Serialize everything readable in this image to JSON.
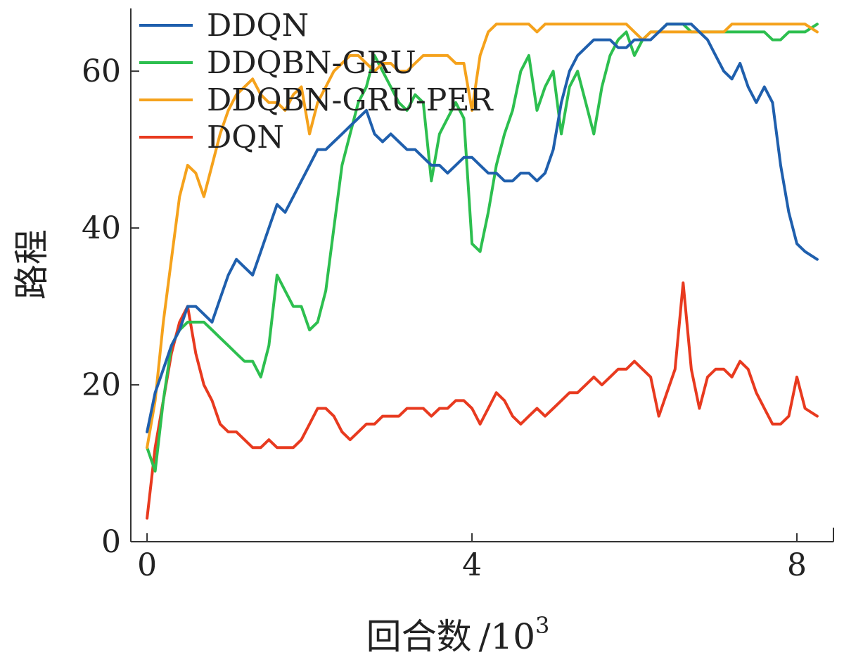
{
  "chart_data": {
    "type": "line",
    "title": "",
    "xlabel": "回合数",
    "xlabel_unit_base": "/10",
    "xlabel_unit_exp": "3",
    "ylabel": "路程",
    "xlim": [
      -0.2,
      8.45
    ],
    "ylim": [
      0,
      68
    ],
    "xticks": [
      0,
      4,
      8
    ],
    "xtick_labels": [
      "0",
      "4",
      "8"
    ],
    "yticks": [
      0,
      20,
      40,
      60
    ],
    "ytick_labels": [
      "0",
      "20",
      "40",
      "60"
    ],
    "legend_position": "top-left",
    "series": [
      {
        "name": "DDQN",
        "color": "#1f5fad",
        "x": [
          0,
          0.1,
          0.2,
          0.3,
          0.4,
          0.5,
          0.6,
          0.7,
          0.8,
          0.9,
          1.0,
          1.1,
          1.2,
          1.3,
          1.4,
          1.5,
          1.6,
          1.7,
          1.8,
          1.9,
          2.0,
          2.1,
          2.2,
          2.3,
          2.4,
          2.5,
          2.6,
          2.7,
          2.8,
          2.9,
          3.0,
          3.1,
          3.2,
          3.3,
          3.4,
          3.5,
          3.6,
          3.7,
          3.8,
          3.9,
          4.0,
          4.1,
          4.2,
          4.3,
          4.4,
          4.5,
          4.6,
          4.7,
          4.8,
          4.9,
          5.0,
          5.1,
          5.2,
          5.3,
          5.4,
          5.5,
          5.6,
          5.7,
          5.8,
          5.9,
          6.0,
          6.1,
          6.2,
          6.3,
          6.4,
          6.5,
          6.6,
          6.7,
          6.8,
          6.9,
          7.0,
          7.1,
          7.2,
          7.3,
          7.4,
          7.5,
          7.6,
          7.7,
          7.8,
          7.9,
          8.0,
          8.1,
          8.25
        ],
        "y": [
          14,
          19,
          22,
          25,
          27,
          30,
          30,
          29,
          28,
          31,
          34,
          36,
          35,
          34,
          37,
          40,
          43,
          42,
          44,
          46,
          48,
          50,
          50,
          51,
          52,
          53,
          54,
          55,
          52,
          51,
          52,
          51,
          50,
          50,
          49,
          48,
          48,
          47,
          48,
          49,
          49,
          48,
          47,
          47,
          46,
          46,
          47,
          47,
          46,
          47,
          50,
          56,
          60,
          62,
          63,
          64,
          64,
          64,
          63,
          63,
          64,
          64,
          64,
          65,
          66,
          66,
          66,
          66,
          65,
          64,
          62,
          60,
          59,
          61,
          58,
          56,
          58,
          56,
          48,
          42,
          38,
          37,
          36
        ]
      },
      {
        "name": "DDQBN-GRU",
        "color": "#2dbf4f",
        "x": [
          0,
          0.1,
          0.2,
          0.3,
          0.4,
          0.5,
          0.6,
          0.7,
          0.8,
          0.9,
          1.0,
          1.1,
          1.2,
          1.3,
          1.4,
          1.5,
          1.6,
          1.7,
          1.8,
          1.9,
          2.0,
          2.1,
          2.2,
          2.3,
          2.4,
          2.5,
          2.6,
          2.7,
          2.8,
          2.9,
          3.0,
          3.1,
          3.2,
          3.3,
          3.4,
          3.5,
          3.6,
          3.7,
          3.8,
          3.9,
          4.0,
          4.1,
          4.2,
          4.3,
          4.4,
          4.5,
          4.6,
          4.7,
          4.8,
          4.9,
          5.0,
          5.1,
          5.2,
          5.3,
          5.4,
          5.5,
          5.6,
          5.7,
          5.8,
          5.9,
          6.0,
          6.1,
          6.2,
          6.3,
          6.4,
          6.5,
          6.6,
          6.7,
          6.8,
          6.9,
          7.0,
          7.1,
          7.2,
          7.3,
          7.4,
          7.5,
          7.6,
          7.7,
          7.8,
          7.9,
          8.0,
          8.1,
          8.25
        ],
        "y": [
          12,
          9,
          18,
          25,
          27,
          28,
          28,
          28,
          27,
          26,
          25,
          24,
          23,
          23,
          21,
          25,
          34,
          32,
          30,
          30,
          27,
          28,
          32,
          40,
          48,
          52,
          56,
          58,
          62,
          60,
          58,
          56,
          55,
          57,
          56,
          46,
          52,
          54,
          56,
          54,
          38,
          37,
          42,
          48,
          52,
          55,
          60,
          62,
          55,
          58,
          60,
          52,
          58,
          60,
          56,
          52,
          58,
          62,
          64,
          65,
          62,
          64,
          65,
          65,
          66,
          66,
          66,
          65,
          65,
          65,
          65,
          65,
          65,
          65,
          65,
          65,
          65,
          64,
          64,
          65,
          65,
          65,
          66
        ]
      },
      {
        "name": "DDQBN-GRU-PER",
        "color": "#f5a21c",
        "x": [
          0,
          0.1,
          0.2,
          0.3,
          0.4,
          0.5,
          0.6,
          0.7,
          0.8,
          0.9,
          1.0,
          1.1,
          1.2,
          1.3,
          1.4,
          1.5,
          1.6,
          1.7,
          1.8,
          1.9,
          2.0,
          2.1,
          2.2,
          2.3,
          2.4,
          2.5,
          2.6,
          2.7,
          2.8,
          2.9,
          3.0,
          3.1,
          3.2,
          3.3,
          3.4,
          3.5,
          3.6,
          3.7,
          3.8,
          3.9,
          4.0,
          4.1,
          4.2,
          4.3,
          4.4,
          4.5,
          4.6,
          4.7,
          4.8,
          4.9,
          5.0,
          5.1,
          5.2,
          5.3,
          5.4,
          5.5,
          5.6,
          5.7,
          5.8,
          5.9,
          6.0,
          6.1,
          6.2,
          6.3,
          6.4,
          6.5,
          6.6,
          6.7,
          6.8,
          6.9,
          7.0,
          7.1,
          7.2,
          7.3,
          7.4,
          7.5,
          7.6,
          7.7,
          7.8,
          7.9,
          8.0,
          8.1,
          8.25
        ],
        "y": [
          12,
          18,
          28,
          36,
          44,
          48,
          47,
          44,
          48,
          52,
          55,
          57,
          58,
          59,
          57,
          56,
          56,
          55,
          57,
          58,
          52,
          56,
          58,
          60,
          61,
          62,
          62,
          61,
          60,
          61,
          61,
          60,
          60,
          61,
          62,
          62,
          62,
          62,
          61,
          61,
          55,
          62,
          65,
          66,
          66,
          66,
          66,
          66,
          65,
          66,
          66,
          66,
          66,
          66,
          66,
          66,
          66,
          66,
          66,
          66,
          65,
          64,
          65,
          65,
          65,
          65,
          65,
          65,
          65,
          65,
          65,
          65,
          66,
          66,
          66,
          66,
          66,
          66,
          66,
          66,
          66,
          66,
          65
        ]
      },
      {
        "name": "DQN",
        "color": "#e83a1f",
        "x": [
          0,
          0.1,
          0.2,
          0.3,
          0.4,
          0.5,
          0.6,
          0.7,
          0.8,
          0.9,
          1.0,
          1.1,
          1.2,
          1.3,
          1.4,
          1.5,
          1.6,
          1.7,
          1.8,
          1.9,
          2.0,
          2.1,
          2.2,
          2.3,
          2.4,
          2.5,
          2.6,
          2.7,
          2.8,
          2.9,
          3.0,
          3.1,
          3.2,
          3.3,
          3.4,
          3.5,
          3.6,
          3.7,
          3.8,
          3.9,
          4.0,
          4.1,
          4.2,
          4.3,
          4.4,
          4.5,
          4.6,
          4.7,
          4.8,
          4.9,
          5.0,
          5.1,
          5.2,
          5.3,
          5.4,
          5.5,
          5.6,
          5.7,
          5.8,
          5.9,
          6.0,
          6.1,
          6.2,
          6.3,
          6.4,
          6.5,
          6.6,
          6.7,
          6.8,
          6.9,
          7.0,
          7.1,
          7.2,
          7.3,
          7.4,
          7.5,
          7.6,
          7.7,
          7.8,
          7.9,
          8.0,
          8.1,
          8.25
        ],
        "y": [
          3,
          12,
          18,
          24,
          28,
          30,
          24,
          20,
          18,
          15,
          14,
          14,
          13,
          12,
          12,
          13,
          12,
          12,
          12,
          13,
          15,
          17,
          17,
          16,
          14,
          13,
          14,
          15,
          15,
          16,
          16,
          16,
          17,
          17,
          17,
          16,
          17,
          17,
          18,
          18,
          17,
          15,
          17,
          19,
          18,
          16,
          15,
          16,
          17,
          16,
          17,
          18,
          19,
          19,
          20,
          21,
          20,
          21,
          22,
          22,
          23,
          22,
          21,
          16,
          19,
          22,
          33,
          22,
          17,
          21,
          22,
          22,
          21,
          23,
          22,
          19,
          17,
          15,
          15,
          16,
          21,
          17,
          16
        ]
      }
    ]
  }
}
